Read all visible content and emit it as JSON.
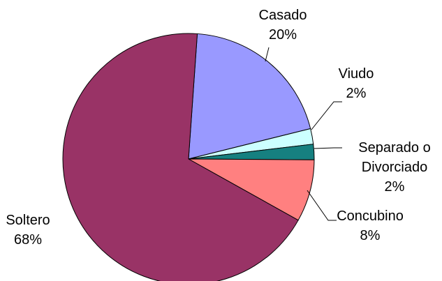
{
  "chart_data": {
    "type": "pie",
    "categories": [
      "Casado",
      "Viudo",
      "Separado o Divorciado",
      "Concubino",
      "Soltero"
    ],
    "values": [
      20,
      2,
      2,
      8,
      68
    ],
    "value_labels": [
      "20%",
      "2%",
      "2%",
      "8%",
      "68%"
    ],
    "colors": [
      "#9999ff",
      "#ccffff",
      "#168080",
      "#ff8080",
      "#993366"
    ]
  }
}
